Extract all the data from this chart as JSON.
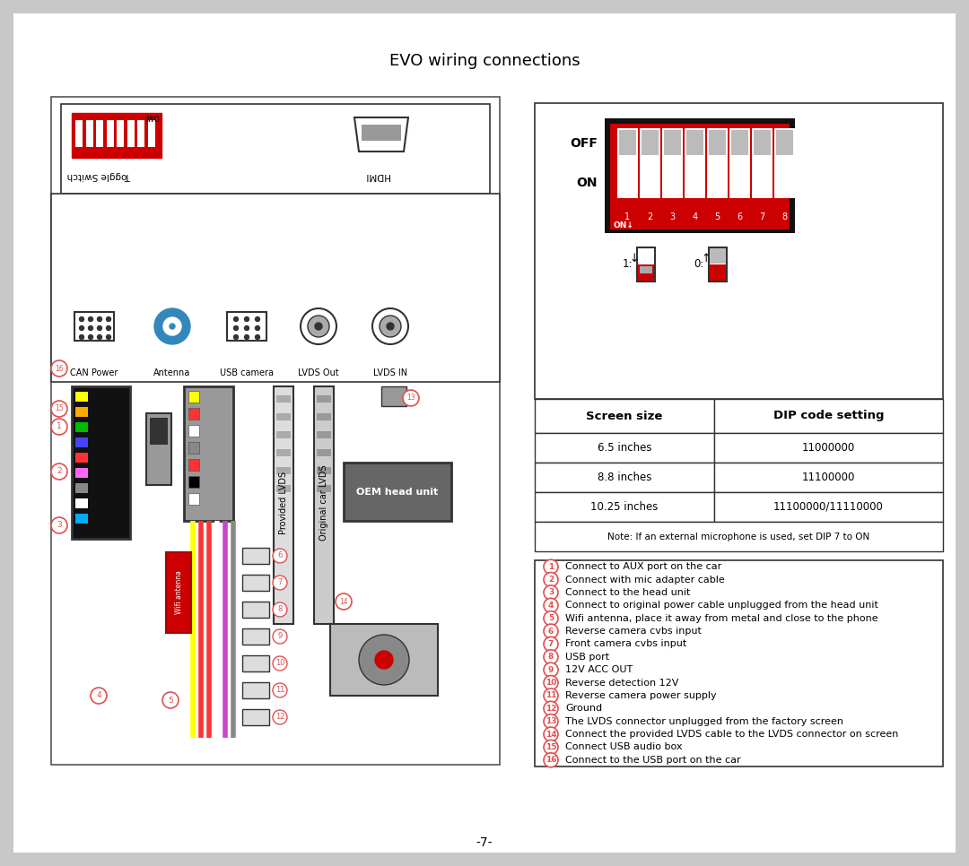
{
  "title": "EVO wiring connections",
  "bg_color": "#c8c8c8",
  "page_bg": "#ffffff",
  "title_fontsize": 13,
  "footer_text": "-7-",
  "dip_table": {
    "headers": [
      "Screen size",
      "DIP code setting"
    ],
    "rows": [
      [
        "6.5 inches",
        "11000000"
      ],
      [
        "8.8 inches",
        "11100000"
      ],
      [
        "10.25 inches",
        "11100000/11110000"
      ]
    ],
    "note": "Note: If an external microphone is used, set DIP 7 to ON"
  },
  "legend_items": [
    [
      "1",
      "Connect to AUX port on the car"
    ],
    [
      "2",
      "Connect with mic adapter cable"
    ],
    [
      "3",
      "Connect to the head unit"
    ],
    [
      "4",
      "Connect to original power cable unplugged from the head unit"
    ],
    [
      "5",
      "Wifi antenna, place it away from metal and close to the phone"
    ],
    [
      "6",
      "Reverse camera cvbs input"
    ],
    [
      "7",
      "Front camera cvbs input"
    ],
    [
      "8",
      "USB port"
    ],
    [
      "9",
      "12V ACC OUT"
    ],
    [
      "10",
      "Reverse detection 12V"
    ],
    [
      "11",
      "Reverse camera power supply"
    ],
    [
      "12",
      "Ground"
    ],
    [
      "13",
      "The LVDS connector unplugged from the factory screen"
    ],
    [
      "14",
      "Connect the provided LVDS cable to the LVDS connector on screen"
    ],
    [
      "15",
      "Connect USB audio box"
    ],
    [
      "16",
      "Connect to the USB port on the car"
    ]
  ],
  "connector_labels": [
    "CAN Power",
    "Antenna",
    "USB camera",
    "LVDS Out",
    "LVDS IN"
  ],
  "red_color": "#cc0000",
  "circle_color": "#e05050",
  "dark_border": "#333333",
  "mid_gray": "#888888",
  "light_gray": "#cccccc"
}
